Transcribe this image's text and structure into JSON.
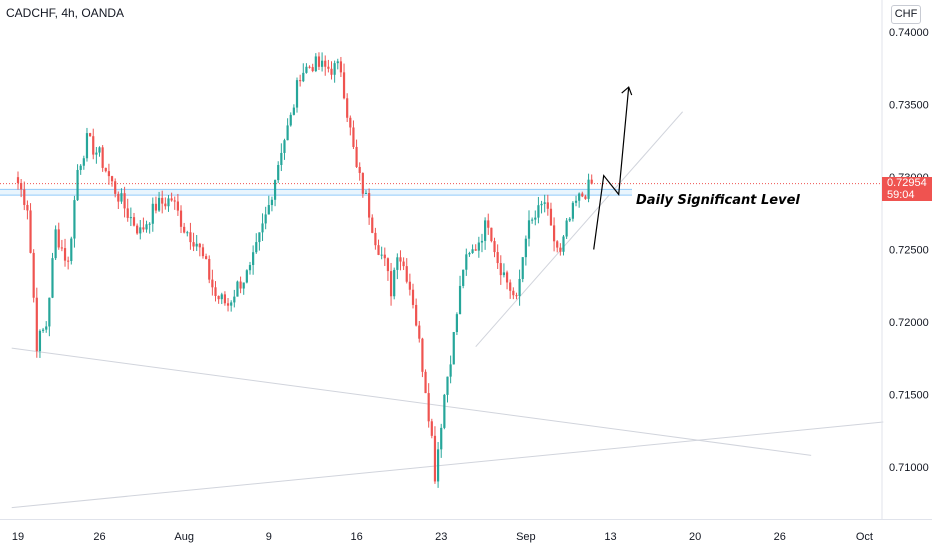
{
  "header": {
    "title": "CADCHF, 4h, OANDA",
    "currency": "CHF"
  },
  "last_price": {
    "price": "0.72954",
    "countdown": "59:04",
    "color": "#ef5350"
  },
  "colors": {
    "up": "#26a69a",
    "down": "#ef5350",
    "level_line": "#90caf9",
    "trendline": "#d1d4dc"
  },
  "chart_data": {
    "type": "candlestick",
    "symbol": "CADCHF",
    "timeframe": "4h",
    "source": "OANDA",
    "ylim": [
      0.7065,
      0.7405
    ],
    "y_ticks": [
      "0.74000",
      "0.73500",
      "0.73000",
      "0.72500",
      "0.72000",
      "0.71500",
      "0.71000"
    ],
    "x_ticks": [
      "19",
      "26",
      "Aug",
      "9",
      "16",
      "23",
      "Sep",
      "13",
      "20",
      "26",
      "Oct"
    ],
    "x_tick_index": [
      0,
      26,
      53,
      80,
      108,
      135,
      162,
      189,
      216,
      243,
      270
    ],
    "annotations": [
      {
        "type": "horizontal-zone",
        "label": "Daily Significant Level",
        "price_from": 0.72875,
        "price_to": 0.72915
      },
      {
        "type": "arrow-projection",
        "direction": "up",
        "from_price": 0.725,
        "to_price": 0.7362
      },
      {
        "type": "trendline",
        "from": [
          -2,
          0.7182
        ],
        "to": [
          253,
          0.7108
        ]
      },
      {
        "type": "trendline",
        "from": [
          -2,
          0.7072
        ],
        "to": [
          276,
          0.7131
        ]
      },
      {
        "type": "trendline",
        "from": [
          146,
          0.7183
        ],
        "to": [
          212,
          0.7345
        ]
      }
    ],
    "waypoints": [
      [
        0,
        0.7296
      ],
      [
        3,
        0.728
      ],
      [
        6,
        0.7185
      ],
      [
        9,
        0.7198
      ],
      [
        12,
        0.7262
      ],
      [
        16,
        0.724
      ],
      [
        19,
        0.7305
      ],
      [
        22,
        0.7325
      ],
      [
        26,
        0.7315
      ],
      [
        30,
        0.7295
      ],
      [
        35,
        0.7275
      ],
      [
        39,
        0.7262
      ],
      [
        44,
        0.728
      ],
      [
        49,
        0.7285
      ],
      [
        53,
        0.7265
      ],
      [
        57,
        0.7255
      ],
      [
        60,
        0.7238
      ],
      [
        63,
        0.7218
      ],
      [
        67,
        0.7212
      ],
      [
        70,
        0.7225
      ],
      [
        74,
        0.7235
      ],
      [
        78,
        0.7265
      ],
      [
        80,
        0.728
      ],
      [
        84,
        0.732
      ],
      [
        87,
        0.734
      ],
      [
        90,
        0.7372
      ],
      [
        94,
        0.7378
      ],
      [
        98,
        0.7375
      ],
      [
        103,
        0.7375
      ],
      [
        105,
        0.7345
      ],
      [
        108,
        0.7305
      ],
      [
        111,
        0.7285
      ],
      [
        114,
        0.7258
      ],
      [
        117,
        0.724
      ],
      [
        119,
        0.7222
      ],
      [
        121,
        0.725
      ],
      [
        124,
        0.7233
      ],
      [
        126,
        0.7215
      ],
      [
        128,
        0.7185
      ],
      [
        130,
        0.7155
      ],
      [
        132,
        0.712
      ],
      [
        133,
        0.7095
      ],
      [
        136,
        0.715
      ],
      [
        139,
        0.719
      ],
      [
        142,
        0.7238
      ],
      [
        146,
        0.7252
      ],
      [
        150,
        0.727
      ],
      [
        153,
        0.7243
      ],
      [
        156,
        0.7228
      ],
      [
        159,
        0.7213
      ],
      [
        162,
        0.7262
      ],
      [
        165,
        0.7272
      ],
      [
        168,
        0.7283
      ],
      [
        170,
        0.7262
      ],
      [
        173,
        0.7246
      ],
      [
        175,
        0.7265
      ],
      [
        178,
        0.7282
      ],
      [
        181,
        0.729
      ],
      [
        183,
        0.7295
      ]
    ],
    "last_close": 0.72954
  }
}
